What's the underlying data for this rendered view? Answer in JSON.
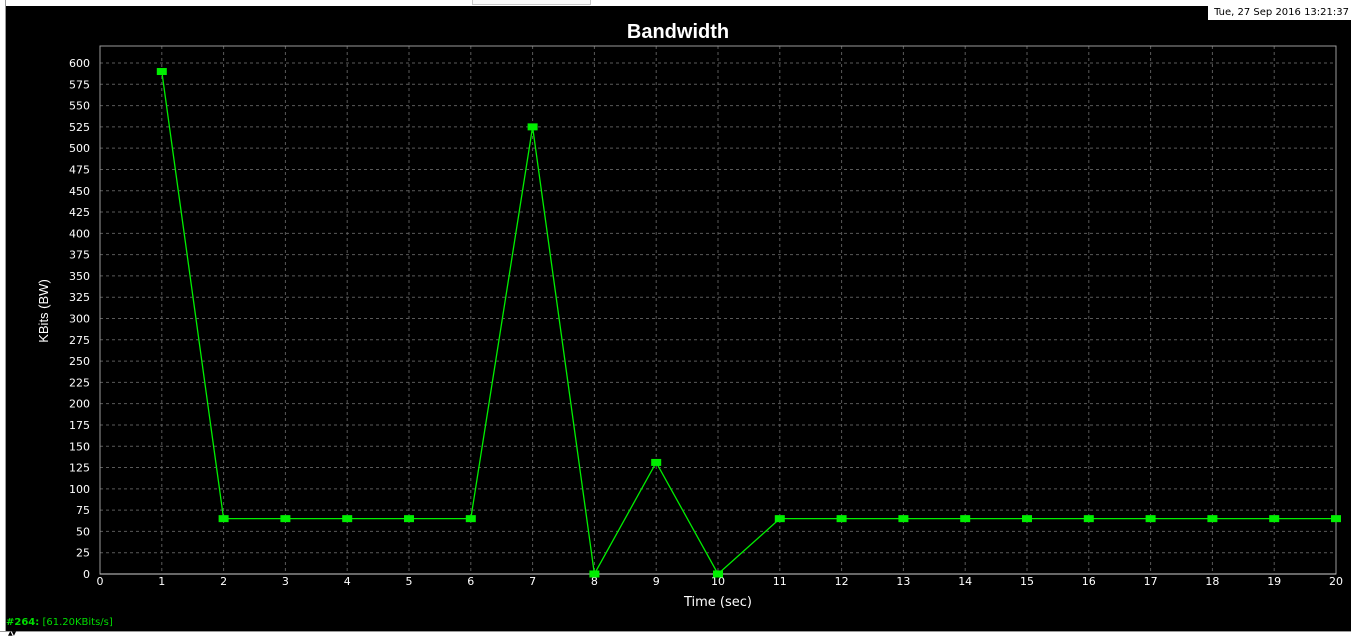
{
  "window": {
    "timestamp": "Tue, 27 Sep 2016 13:21:37"
  },
  "status": {
    "stream_id": "#264:",
    "rate": "[61.20KBits/s]"
  },
  "colors": {
    "background": "#000000",
    "grid": "#5a5a5a",
    "axis_text": "#ffffff",
    "series": "#00ee00"
  },
  "chart_data": {
    "type": "line",
    "title": "Bandwidth",
    "xlabel": "Time (sec)",
    "ylabel": "KBits (BW)",
    "xlim": [
      0,
      20
    ],
    "ylim": [
      0,
      600
    ],
    "x_ticks": [
      0,
      1,
      2,
      3,
      4,
      5,
      6,
      7,
      8,
      9,
      10,
      11,
      12,
      13,
      14,
      15,
      16,
      17,
      18,
      19,
      20
    ],
    "y_ticks": [
      0,
      25,
      50,
      75,
      100,
      125,
      150,
      175,
      200,
      225,
      250,
      275,
      300,
      325,
      350,
      375,
      400,
      425,
      450,
      475,
      500,
      525,
      550,
      575,
      600
    ],
    "grid": true,
    "series": [
      {
        "x": [
          1,
          2,
          3,
          4,
          5,
          6,
          7,
          8,
          9,
          10,
          11,
          12,
          13,
          14,
          15,
          16,
          17,
          18,
          19,
          20
        ],
        "values": [
          590,
          65,
          65,
          65,
          65,
          65,
          525,
          0,
          131,
          0,
          65,
          65,
          65,
          65,
          65,
          65,
          65,
          65,
          65,
          65
        ]
      }
    ]
  }
}
